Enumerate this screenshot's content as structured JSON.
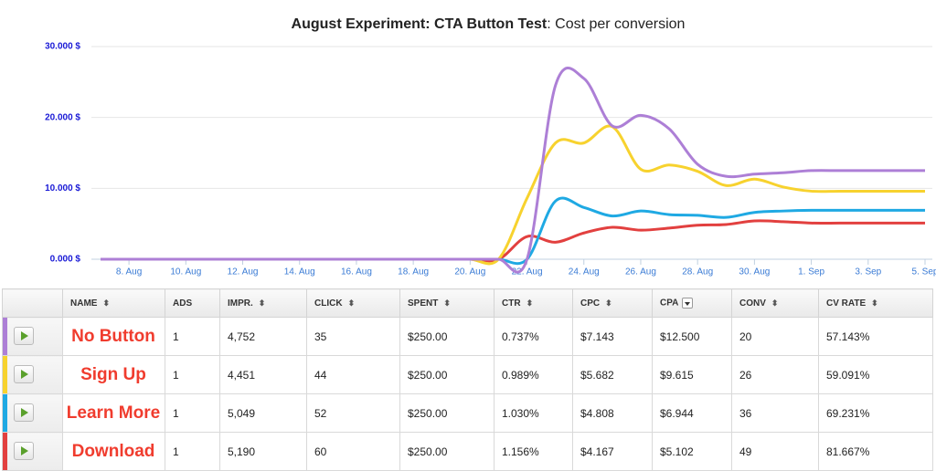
{
  "chart_data": {
    "type": "line",
    "title": "August Experiment: CTA Button Test",
    "subtitle": ": Cost per conversion",
    "categories": [
      null,
      "8. Aug",
      null,
      "10. Aug",
      null,
      "12. Aug",
      null,
      "14. Aug",
      null,
      "16. Aug",
      null,
      "18. Aug",
      null,
      "20. Aug",
      null,
      "22. Aug",
      null,
      "24. Aug",
      null,
      "26. Aug",
      null,
      "28. Aug",
      null,
      "30. Aug",
      null,
      "1. Sep",
      null,
      "3. Sep",
      null,
      "5. Sep"
    ],
    "ylim": [
      0,
      30
    ],
    "yticks": [
      {
        "value": 0,
        "label": "0.000 $"
      },
      {
        "value": 10,
        "label": "10.000 $"
      },
      {
        "value": 20,
        "label": "20.000 $"
      },
      {
        "value": 30,
        "label": "30.000 $"
      }
    ],
    "grid": true,
    "series": [
      {
        "name": "No Button",
        "color": "#ad7fd6",
        "values": [
          0,
          0,
          0,
          0,
          0,
          0,
          0,
          0,
          0,
          0,
          0,
          0,
          0,
          0,
          0,
          0,
          24.5,
          25.5,
          18.8,
          20.3,
          18.4,
          13.4,
          11.7,
          12.0,
          12.2,
          12.5,
          12.5,
          12.5,
          12.5,
          12.5
        ]
      },
      {
        "name": "Sign Up",
        "color": "#f7d22e",
        "values": [
          0,
          0,
          0,
          0,
          0,
          0,
          0,
          0,
          0,
          0,
          0,
          0,
          0,
          0,
          0,
          8.6,
          16.4,
          16.4,
          18.7,
          12.7,
          13.3,
          12.4,
          10.4,
          11.3,
          10.2,
          9.6,
          9.6,
          9.6,
          9.6,
          9.6
        ]
      },
      {
        "name": "Learn More",
        "color": "#1fa9e3",
        "values": [
          0,
          0,
          0,
          0,
          0,
          0,
          0,
          0,
          0,
          0,
          0,
          0,
          0,
          0,
          0,
          0,
          8.2,
          7.3,
          6.1,
          6.8,
          6.3,
          6.2,
          5.9,
          6.6,
          6.8,
          6.9,
          6.9,
          6.9,
          6.9,
          6.9
        ]
      },
      {
        "name": "Download",
        "color": "#e2403f",
        "values": [
          0,
          0,
          0,
          0,
          0,
          0,
          0,
          0,
          0,
          0,
          0,
          0,
          0,
          0,
          0,
          3.2,
          2.4,
          3.7,
          4.5,
          4.1,
          4.4,
          4.8,
          4.9,
          5.4,
          5.3,
          5.1,
          5.1,
          5.1,
          5.1,
          5.1
        ]
      }
    ]
  },
  "table": {
    "columns": [
      "NAME",
      "ADS",
      "IMPR.",
      "CLICK",
      "SPENT",
      "CTR",
      "CPC",
      "CPA",
      "CONV",
      "CV RATE"
    ],
    "rows": [
      [
        "No Button",
        "1",
        "4,752",
        "35",
        "$250.00",
        "0.737%",
        "$7.143",
        "$12.500",
        "20",
        "57.143%"
      ],
      [
        "Sign Up",
        "1",
        "4,451",
        "44",
        "$250.00",
        "0.989%",
        "$5.682",
        "$9.615",
        "26",
        "59.091%"
      ],
      [
        "Learn More",
        "1",
        "5,049",
        "52",
        "$250.00",
        "1.030%",
        "$4.808",
        "$6.944",
        "36",
        "69.231%"
      ],
      [
        "Download",
        "1",
        "5,190",
        "60",
        "$250.00",
        "1.156%",
        "$4.167",
        "$5.102",
        "49",
        "81.667%"
      ]
    ]
  }
}
